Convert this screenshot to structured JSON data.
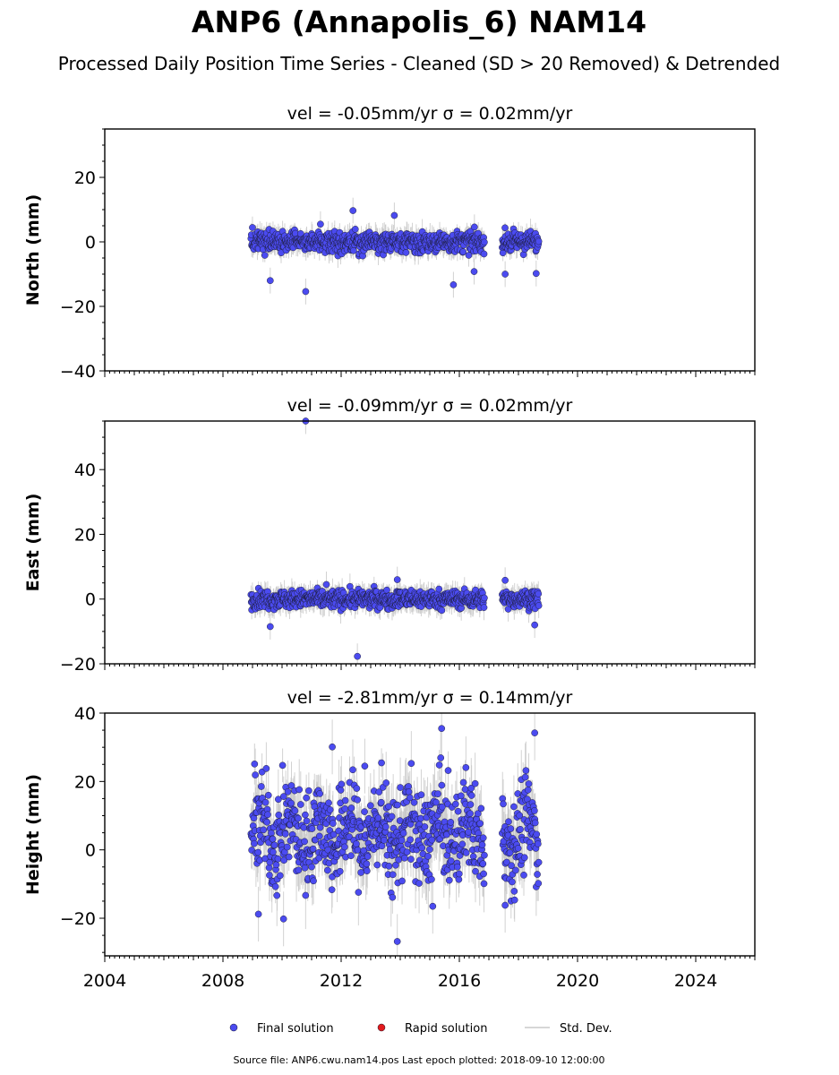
{
  "title": "ANP6 (Annapolis_6) NAM14",
  "subtitle": "Processed Daily Position Time Series - Cleaned (SD > 20 Removed) & Detrended",
  "footer": "Source file: ANP6.cwu.nam14.pos  Last epoch plotted: 2018-09-10 12:00:00",
  "legend": {
    "final": "Final solution",
    "rapid": "Rapid solution",
    "std": "Std. Dev."
  },
  "colors": {
    "final": "#4b4bf0",
    "rapid": "#e31a1c",
    "std": "#c8c8c8",
    "edge": "#1a1a2e"
  },
  "chart_data": [
    {
      "type": "scatter",
      "panel": "north",
      "title": "vel = -0.05mm/yr   σ = 0.02mm/yr",
      "ylabel": "North (mm)",
      "xlim": [
        2004,
        2026
      ],
      "ylim": [
        -40,
        35
      ],
      "yticks": [
        -40,
        -20,
        0,
        20
      ],
      "xticks": [
        2004,
        2008,
        2012,
        2016,
        2020,
        2024
      ],
      "segments": [
        [
          2008.95,
          2016.85
        ],
        [
          2017.45,
          2018.69
        ]
      ],
      "spread": 1.6,
      "outliers": [
        {
          "x": 2009.6,
          "y": -12
        },
        {
          "x": 2010.8,
          "y": -15.4
        },
        {
          "x": 2011.3,
          "y": 5.5
        },
        {
          "x": 2012.4,
          "y": 9.7
        },
        {
          "x": 2013.8,
          "y": 8.2
        },
        {
          "x": 2015.8,
          "y": -13.3
        },
        {
          "x": 2016.5,
          "y": -9.2
        },
        {
          "x": 2017.55,
          "y": -10
        },
        {
          "x": 2018.6,
          "y": -9.8
        }
      ]
    },
    {
      "type": "scatter",
      "panel": "east",
      "title": "vel = -0.09mm/yr   σ = 0.02mm/yr",
      "ylabel": "East (mm)",
      "xlim": [
        2004,
        2026
      ],
      "ylim": [
        -20,
        55
      ],
      "yticks": [
        -20,
        0,
        20,
        40
      ],
      "xticks": [
        2004,
        2008,
        2012,
        2016,
        2020,
        2024
      ],
      "segments": [
        [
          2008.95,
          2016.85
        ],
        [
          2017.45,
          2018.69
        ]
      ],
      "spread": 1.4,
      "outliers": [
        {
          "x": 2010.8,
          "y": 55
        },
        {
          "x": 2009.6,
          "y": -8.5
        },
        {
          "x": 2012.55,
          "y": -17.7
        },
        {
          "x": 2013.9,
          "y": 6
        },
        {
          "x": 2011.5,
          "y": 4.5
        },
        {
          "x": 2017.55,
          "y": 5.8
        },
        {
          "x": 2018.55,
          "y": -8
        }
      ]
    },
    {
      "type": "scatter",
      "panel": "height",
      "title": "vel = -2.81mm/yr   σ = 0.14mm/yr",
      "ylabel": "Height (mm)",
      "xlim": [
        2004,
        2026
      ],
      "ylim": [
        -31,
        40
      ],
      "yticks": [
        -20,
        0,
        20,
        40
      ],
      "xticks": [
        2004,
        2008,
        2012,
        2016,
        2020,
        2024
      ],
      "segments": [
        [
          2008.95,
          2016.85
        ],
        [
          2017.45,
          2018.69
        ]
      ],
      "spread": 7,
      "outliers": [
        {
          "x": 2013.9,
          "y": -26.8
        },
        {
          "x": 2015.4,
          "y": 35.5
        },
        {
          "x": 2018.55,
          "y": 34.2
        },
        {
          "x": 2011.7,
          "y": 30.1
        },
        {
          "x": 2010.05,
          "y": -20.2
        },
        {
          "x": 2009.2,
          "y": -18.8
        },
        {
          "x": 2017.55,
          "y": -16.2
        },
        {
          "x": 2015.1,
          "y": -16.5
        },
        {
          "x": 2012.8,
          "y": 24.5
        }
      ]
    }
  ]
}
